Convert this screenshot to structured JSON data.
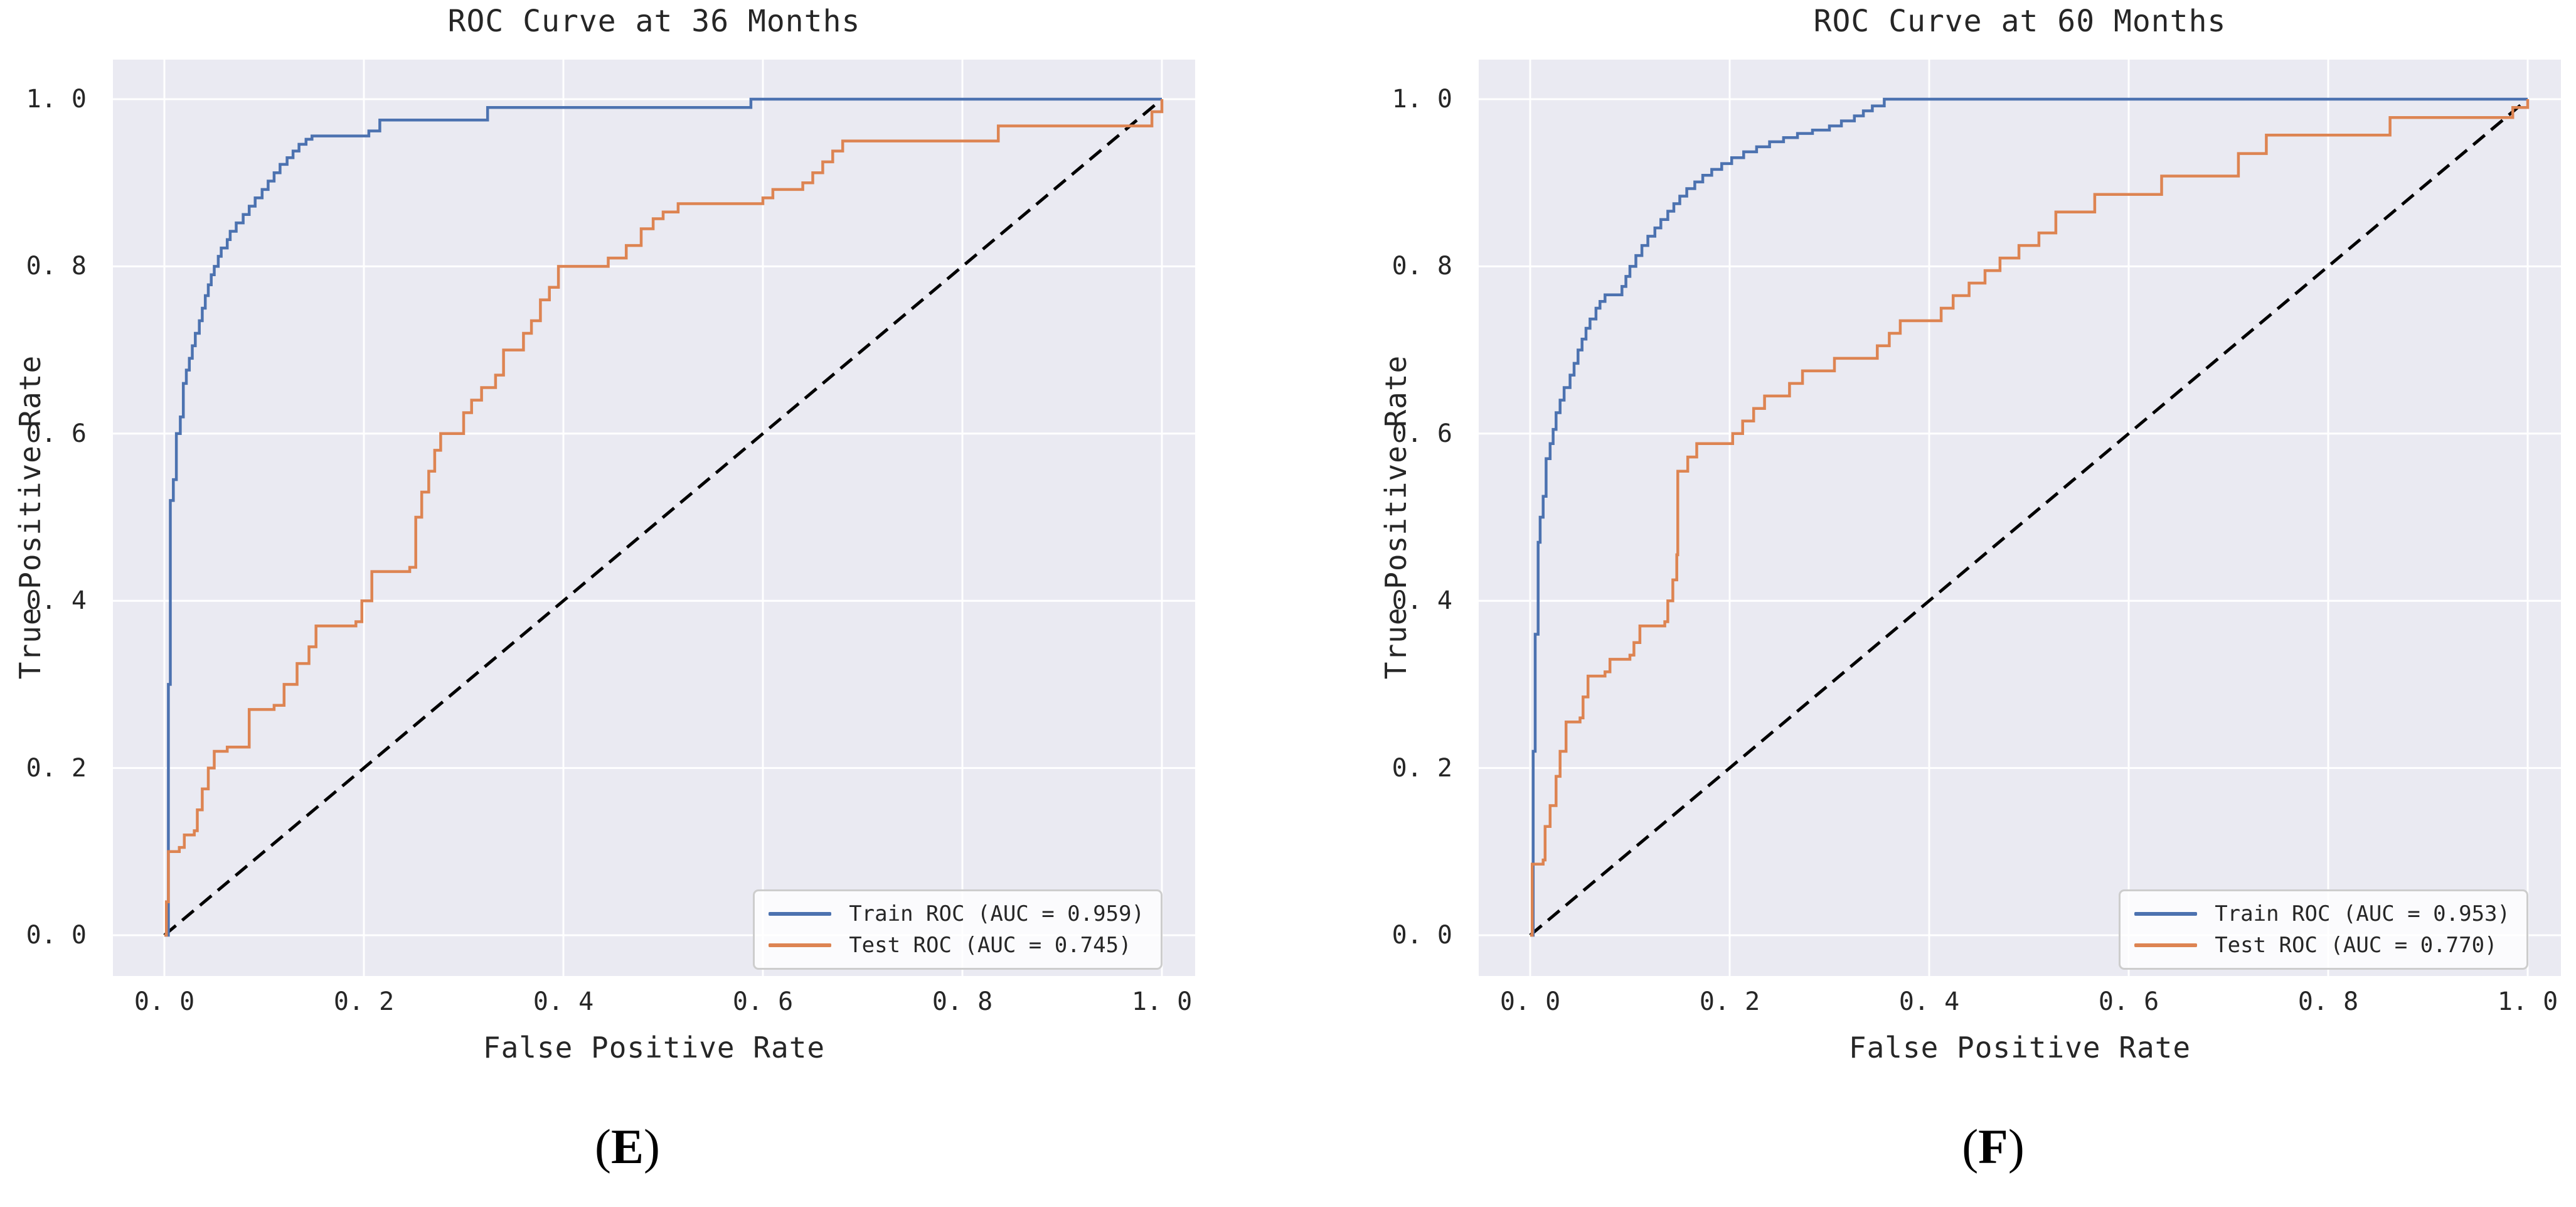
{
  "palette": {
    "train": "#4C72B0",
    "test": "#DD8452",
    "diagonal": "#000000",
    "plot_bg": "#EAEAF2",
    "grid": "#FFFFFF",
    "text": "#262626",
    "legend_border": "#CDCDCD",
    "legend_bg": "rgba(255,255,255,0.8)"
  },
  "chart_data": [
    {
      "type": "line",
      "title": "ROC Curve at 36 Months",
      "xlabel": "False Positive Rate",
      "ylabel": "True Positive Rate",
      "xlim": [
        0,
        1
      ],
      "ylim": [
        0,
        1
      ],
      "grid": true,
      "legend_position": "lower right",
      "caption": {
        "open": "(",
        "letter": "E",
        "close": ")"
      },
      "xticks": {
        "values": [
          0,
          0.2,
          0.4,
          0.6,
          0.8,
          1.0
        ],
        "labels": [
          "0. 0",
          "0. 2",
          "0. 4",
          "0. 6",
          "0. 8",
          "1. 0"
        ]
      },
      "yticks": {
        "values": [
          0,
          0.2,
          0.4,
          0.6,
          0.8,
          1.0
        ],
        "labels": [
          "0. 0",
          "0. 2",
          "0. 4",
          "0. 6",
          "0. 8",
          "1. 0"
        ]
      },
      "series": [
        {
          "name": "Train ROC (AUC = 0.959)",
          "auc": 0.959,
          "color_key": "train",
          "style": "step",
          "in_legend": true,
          "points": [
            [
              0,
              0
            ],
            [
              0.004,
              0.3
            ],
            [
              0.006,
              0.42
            ],
            [
              0.006,
              0.52
            ],
            [
              0.009,
              0.545
            ],
            [
              0.012,
              0.565
            ],
            [
              0.012,
              0.6
            ],
            [
              0.016,
              0.62
            ],
            [
              0.019,
              0.645
            ],
            [
              0.019,
              0.66
            ],
            [
              0.022,
              0.676
            ],
            [
              0.025,
              0.69
            ],
            [
              0.028,
              0.705
            ],
            [
              0.031,
              0.72
            ],
            [
              0.035,
              0.735
            ],
            [
              0.038,
              0.75
            ],
            [
              0.041,
              0.765
            ],
            [
              0.044,
              0.778
            ],
            [
              0.047,
              0.79
            ],
            [
              0.05,
              0.8
            ],
            [
              0.054,
              0.812
            ],
            [
              0.057,
              0.822
            ],
            [
              0.063,
              0.832
            ],
            [
              0.066,
              0.842
            ],
            [
              0.072,
              0.852
            ],
            [
              0.079,
              0.862
            ],
            [
              0.085,
              0.872
            ],
            [
              0.091,
              0.882
            ],
            [
              0.098,
              0.892
            ],
            [
              0.104,
              0.902
            ],
            [
              0.11,
              0.912
            ],
            [
              0.116,
              0.922
            ],
            [
              0.123,
              0.93
            ],
            [
              0.129,
              0.938
            ],
            [
              0.135,
              0.946
            ],
            [
              0.142,
              0.952
            ],
            [
              0.148,
              0.956
            ],
            [
              0.205,
              0.962
            ],
            [
              0.216,
              0.975
            ],
            [
              0.324,
              0.99
            ],
            [
              0.588,
              1.0
            ],
            [
              1,
              1
            ]
          ]
        },
        {
          "name": "Test ROC (AUC = 0.745)",
          "auc": 0.745,
          "color_key": "test",
          "style": "step",
          "in_legend": true,
          "points": [
            [
              0,
              0
            ],
            [
              0.002,
              0.04
            ],
            [
              0.004,
              0.075
            ],
            [
              0.004,
              0.1
            ],
            [
              0.015,
              0.105
            ],
            [
              0.02,
              0.12
            ],
            [
              0.03,
              0.125
            ],
            [
              0.033,
              0.15
            ],
            [
              0.038,
              0.175
            ],
            [
              0.044,
              0.2
            ],
            [
              0.05,
              0.22
            ],
            [
              0.063,
              0.225
            ],
            [
              0.085,
              0.27
            ],
            [
              0.11,
              0.275
            ],
            [
              0.12,
              0.3
            ],
            [
              0.133,
              0.325
            ],
            [
              0.145,
              0.345
            ],
            [
              0.152,
              0.37
            ],
            [
              0.192,
              0.375
            ],
            [
              0.198,
              0.4
            ],
            [
              0.208,
              0.435
            ],
            [
              0.246,
              0.44
            ],
            [
              0.252,
              0.5
            ],
            [
              0.258,
              0.53
            ],
            [
              0.265,
              0.555
            ],
            [
              0.271,
              0.58
            ],
            [
              0.277,
              0.6
            ],
            [
              0.3,
              0.625
            ],
            [
              0.308,
              0.64
            ],
            [
              0.318,
              0.655
            ],
            [
              0.332,
              0.67
            ],
            [
              0.34,
              0.7
            ],
            [
              0.36,
              0.72
            ],
            [
              0.368,
              0.735
            ],
            [
              0.377,
              0.76
            ],
            [
              0.386,
              0.775
            ],
            [
              0.395,
              0.8
            ],
            [
              0.445,
              0.81
            ],
            [
              0.463,
              0.825
            ],
            [
              0.478,
              0.845
            ],
            [
              0.49,
              0.857
            ],
            [
              0.5,
              0.865
            ],
            [
              0.515,
              0.875
            ],
            [
              0.6,
              0.882
            ],
            [
              0.61,
              0.892
            ],
            [
              0.64,
              0.9
            ],
            [
              0.65,
              0.912
            ],
            [
              0.66,
              0.925
            ],
            [
              0.67,
              0.938
            ],
            [
              0.68,
              0.95
            ],
            [
              0.836,
              0.968
            ],
            [
              0.99,
              0.985
            ],
            [
              1,
              1
            ]
          ]
        },
        {
          "name": "chance-diagonal",
          "color_key": "diagonal",
          "style": "dashed",
          "in_legend": false,
          "points": [
            [
              0,
              0
            ],
            [
              1,
              1
            ]
          ]
        }
      ]
    },
    {
      "type": "line",
      "title": "ROC Curve at 60 Months",
      "xlabel": "False Positive Rate",
      "ylabel": "True Positive Rate",
      "xlim": [
        0,
        1
      ],
      "ylim": [
        0,
        1
      ],
      "grid": true,
      "legend_position": "lower right",
      "caption": {
        "open": "(",
        "letter": "F",
        "close": ")"
      },
      "xticks": {
        "values": [
          0,
          0.2,
          0.4,
          0.6,
          0.8,
          1.0
        ],
        "labels": [
          "0. 0",
          "0. 2",
          "0. 4",
          "0. 6",
          "0. 8",
          "1. 0"
        ]
      },
      "yticks": {
        "values": [
          0,
          0.2,
          0.4,
          0.6,
          0.8,
          1.0
        ],
        "labels": [
          "0. 0",
          "0. 2",
          "0. 4",
          "0. 6",
          "0. 8",
          "1. 0"
        ]
      },
      "series": [
        {
          "name": "Train ROC (AUC = 0.953)",
          "auc": 0.953,
          "color_key": "train",
          "style": "step",
          "in_legend": true,
          "points": [
            [
              0,
              0
            ],
            [
              0.003,
              0.22
            ],
            [
              0.005,
              0.3
            ],
            [
              0.005,
              0.36
            ],
            [
              0.008,
              0.42
            ],
            [
              0.008,
              0.47
            ],
            [
              0.01,
              0.5
            ],
            [
              0.013,
              0.525
            ],
            [
              0.016,
              0.55
            ],
            [
              0.016,
              0.57
            ],
            [
              0.02,
              0.588
            ],
            [
              0.023,
              0.605
            ],
            [
              0.026,
              0.625
            ],
            [
              0.03,
              0.64
            ],
            [
              0.034,
              0.655
            ],
            [
              0.04,
              0.67
            ],
            [
              0.044,
              0.684
            ],
            [
              0.048,
              0.7
            ],
            [
              0.052,
              0.713
            ],
            [
              0.056,
              0.726
            ],
            [
              0.06,
              0.737
            ],
            [
              0.066,
              0.75
            ],
            [
              0.07,
              0.758
            ],
            [
              0.075,
              0.766
            ],
            [
              0.092,
              0.776
            ],
            [
              0.096,
              0.788
            ],
            [
              0.1,
              0.8
            ],
            [
              0.106,
              0.813
            ],
            [
              0.112,
              0.825
            ],
            [
              0.118,
              0.836
            ],
            [
              0.125,
              0.846
            ],
            [
              0.131,
              0.856
            ],
            [
              0.138,
              0.866
            ],
            [
              0.144,
              0.875
            ],
            [
              0.15,
              0.884
            ],
            [
              0.157,
              0.893
            ],
            [
              0.165,
              0.901
            ],
            [
              0.173,
              0.909
            ],
            [
              0.182,
              0.916
            ],
            [
              0.192,
              0.923
            ],
            [
              0.202,
              0.93
            ],
            [
              0.214,
              0.937
            ],
            [
              0.227,
              0.943
            ],
            [
              0.24,
              0.949
            ],
            [
              0.254,
              0.954
            ],
            [
              0.268,
              0.959
            ],
            [
              0.283,
              0.963
            ],
            [
              0.3,
              0.968
            ],
            [
              0.312,
              0.974
            ],
            [
              0.325,
              0.98
            ],
            [
              0.334,
              0.986
            ],
            [
              0.343,
              0.992
            ],
            [
              0.355,
              1.0
            ],
            [
              1,
              1
            ]
          ]
        },
        {
          "name": "Test ROC (AUC = 0.770)",
          "auc": 0.77,
          "color_key": "test",
          "style": "step",
          "in_legend": true,
          "points": [
            [
              0,
              0
            ],
            [
              0.002,
              0.085
            ],
            [
              0.013,
              0.09
            ],
            [
              0.015,
              0.13
            ],
            [
              0.02,
              0.155
            ],
            [
              0.026,
              0.19
            ],
            [
              0.03,
              0.22
            ],
            [
              0.036,
              0.255
            ],
            [
              0.05,
              0.26
            ],
            [
              0.053,
              0.285
            ],
            [
              0.058,
              0.31
            ],
            [
              0.075,
              0.315
            ],
            [
              0.08,
              0.33
            ],
            [
              0.1,
              0.335
            ],
            [
              0.104,
              0.35
            ],
            [
              0.11,
              0.37
            ],
            [
              0.135,
              0.375
            ],
            [
              0.138,
              0.4
            ],
            [
              0.143,
              0.425
            ],
            [
              0.147,
              0.455
            ],
            [
              0.148,
              0.555
            ],
            [
              0.158,
              0.572
            ],
            [
              0.167,
              0.588
            ],
            [
              0.203,
              0.6
            ],
            [
              0.213,
              0.615
            ],
            [
              0.224,
              0.63
            ],
            [
              0.235,
              0.645
            ],
            [
              0.26,
              0.66
            ],
            [
              0.273,
              0.675
            ],
            [
              0.305,
              0.69
            ],
            [
              0.348,
              0.705
            ],
            [
              0.36,
              0.72
            ],
            [
              0.371,
              0.735
            ],
            [
              0.412,
              0.75
            ],
            [
              0.424,
              0.765
            ],
            [
              0.44,
              0.78
            ],
            [
              0.456,
              0.795
            ],
            [
              0.471,
              0.81
            ],
            [
              0.49,
              0.825
            ],
            [
              0.51,
              0.84
            ],
            [
              0.527,
              0.865
            ],
            [
              0.566,
              0.886
            ],
            [
              0.633,
              0.908
            ],
            [
              0.71,
              0.935
            ],
            [
              0.738,
              0.957
            ],
            [
              0.862,
              0.978
            ],
            [
              0.985,
              0.99
            ],
            [
              1,
              1
            ]
          ]
        },
        {
          "name": "chance-diagonal",
          "color_key": "diagonal",
          "style": "dashed",
          "in_legend": false,
          "points": [
            [
              0,
              0
            ],
            [
              1,
              1
            ]
          ]
        }
      ]
    }
  ]
}
